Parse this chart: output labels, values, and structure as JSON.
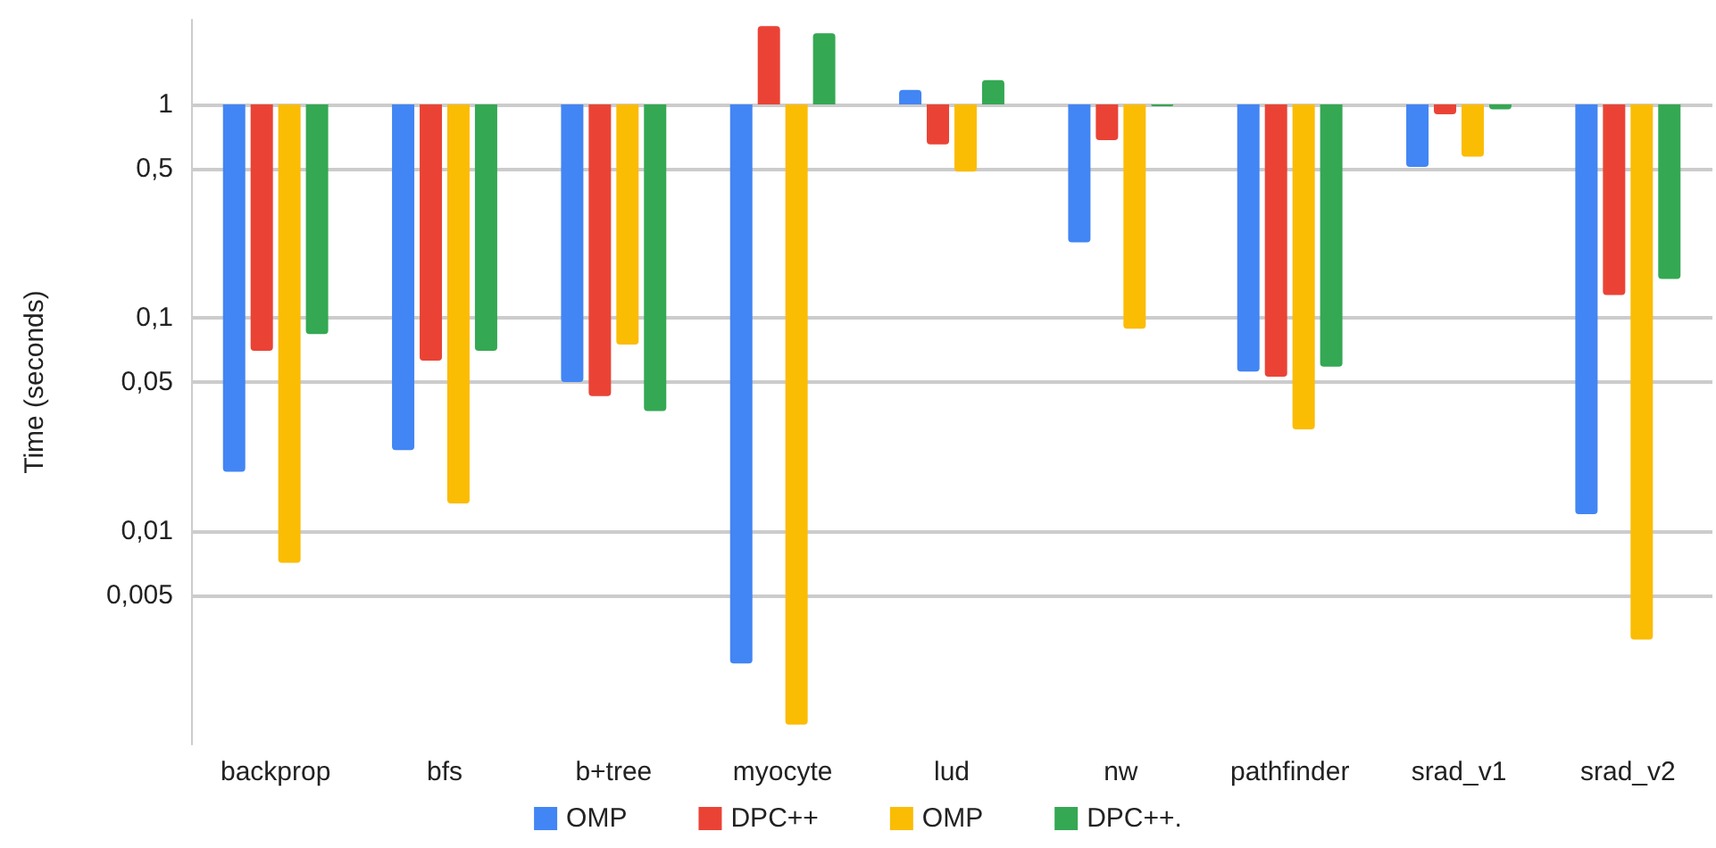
{
  "chart_data": {
    "type": "bar",
    "ylabel": "Time (seconds)",
    "categories": [
      "backprop",
      "bfs",
      "b+tree",
      "myocyte",
      "lud",
      "nw",
      "pathfinder",
      "srad_v1",
      "srad_v2"
    ],
    "series": [
      {
        "name": "OMP",
        "color": "#4285f4",
        "base": [
          1,
          1,
          1,
          1,
          1,
          1,
          1,
          1,
          1
        ],
        "values": [
          -0.981,
          -0.976,
          -0.95,
          -0.9976,
          0.17,
          -0.774,
          -0.944,
          -0.49,
          -0.988
        ]
      },
      {
        "name": "DPC++",
        "color": "#ea4335",
        "base": [
          1,
          1,
          1,
          1,
          1,
          1,
          1,
          1,
          1
        ],
        "values": [
          -0.93,
          -0.937,
          -0.957,
          1.33,
          -0.35,
          -0.32,
          -0.947,
          -0.1,
          -0.872
        ]
      },
      {
        "name": "OMP",
        "color": "#fbbc04",
        "base": [
          1,
          1,
          1,
          1,
          1,
          1,
          1,
          1,
          1
        ],
        "values": [
          -0.9929,
          -0.9865,
          -0.925,
          -0.99876,
          -0.515,
          -0.911,
          -0.97,
          -0.43,
          -0.9969
        ]
      },
      {
        "name": "DPC++.",
        "color": "#34a853",
        "base": [
          1,
          1,
          1,
          1,
          1,
          1,
          1,
          1,
          1
        ],
        "values": [
          -0.916,
          -0.93,
          -0.9634,
          1.16,
          0.3,
          -0.01,
          -0.941,
          -0.05,
          -0.848
        ]
      }
    ],
    "log": true,
    "ylim": [
      0.001,
      2.5
    ],
    "yticks": [
      {
        "value": 0.005,
        "label": "0,005"
      },
      {
        "value": 0.01,
        "label": "0,01"
      },
      {
        "value": 0.05,
        "label": "0,05"
      },
      {
        "value": 0.1,
        "label": "0,1"
      },
      {
        "value": 0.5,
        "label": "0,5"
      },
      {
        "value": 1,
        "label": "1"
      }
    ],
    "grid": "y",
    "legend": "bottom"
  }
}
